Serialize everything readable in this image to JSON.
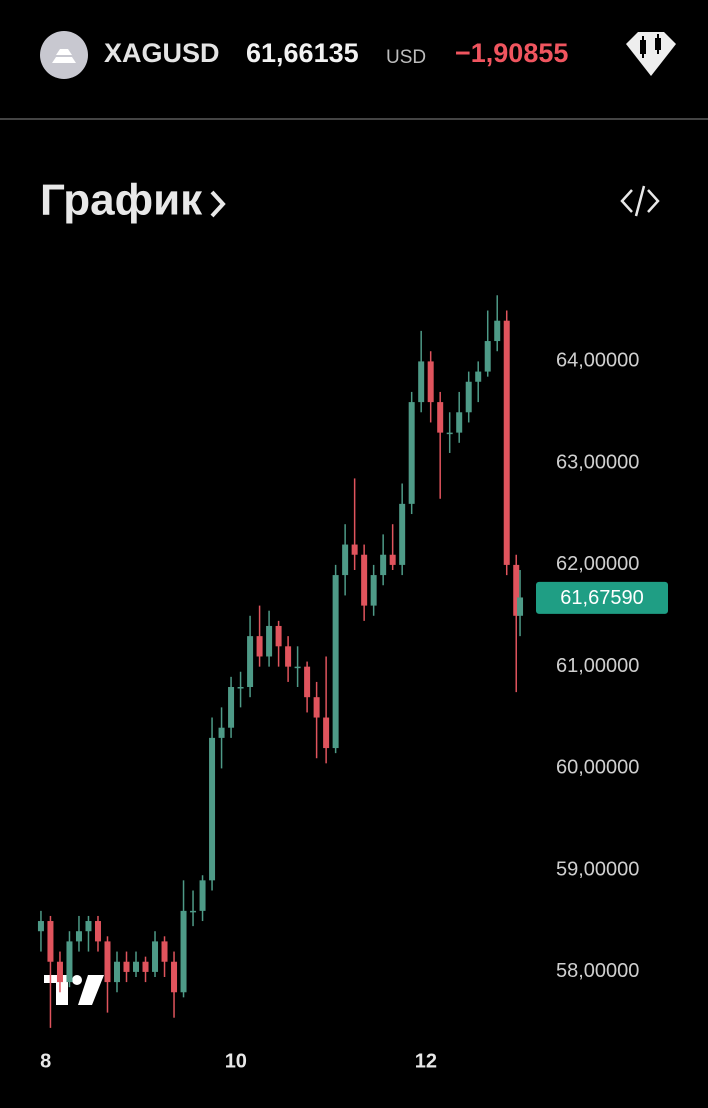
{
  "header": {
    "symbol": "XAGUSD",
    "price": "61,66135",
    "currency": "USD",
    "change": "−1,90855"
  },
  "section_title": "График",
  "chart_data": {
    "type": "candlestick",
    "x": [
      7.95,
      8.05,
      8.15,
      8.25,
      8.35,
      8.45,
      8.55,
      8.65,
      8.75,
      8.85,
      8.95,
      9.05,
      9.15,
      9.25,
      9.35,
      9.45,
      9.55,
      9.65,
      9.75,
      9.85,
      9.95,
      10.05,
      10.15,
      10.25,
      10.35,
      10.45,
      10.55,
      10.65,
      10.75,
      10.85,
      10.95,
      11.05,
      11.15,
      11.25,
      11.35,
      11.45,
      11.55,
      11.65,
      11.75,
      11.85,
      11.95,
      12.05,
      12.15,
      12.25,
      12.35,
      12.45,
      12.55,
      12.65,
      12.75,
      12.85,
      12.95,
      12.99
    ],
    "open": [
      58.4,
      58.5,
      58.1,
      57.9,
      58.3,
      58.4,
      58.5,
      58.3,
      57.9,
      58.1,
      58.0,
      58.1,
      58.0,
      58.3,
      58.1,
      57.8,
      58.6,
      58.6,
      58.9,
      60.3,
      60.4,
      60.8,
      60.8,
      61.3,
      61.1,
      61.4,
      61.2,
      61.0,
      61.0,
      60.7,
      60.5,
      60.2,
      61.9,
      62.2,
      62.1,
      61.6,
      61.9,
      62.1,
      62.0,
      62.6,
      63.6,
      64.0,
      63.6,
      63.3,
      63.3,
      63.5,
      63.8,
      63.9,
      64.2,
      64.4,
      62.0,
      61.5
    ],
    "high": [
      58.6,
      58.55,
      58.2,
      58.4,
      58.55,
      58.55,
      58.55,
      58.35,
      58.2,
      58.2,
      58.2,
      58.15,
      58.4,
      58.35,
      58.2,
      58.9,
      58.8,
      58.95,
      60.5,
      60.6,
      60.9,
      60.95,
      61.5,
      61.6,
      61.55,
      61.45,
      61.3,
      61.2,
      61.05,
      60.85,
      61.1,
      62.0,
      62.4,
      62.85,
      62.2,
      62.0,
      62.3,
      62.4,
      62.8,
      63.7,
      64.3,
      64.1,
      63.7,
      63.5,
      63.7,
      63.9,
      64.0,
      64.5,
      64.65,
      64.5,
      62.1,
      61.95
    ],
    "low": [
      58.2,
      57.45,
      57.8,
      57.85,
      58.2,
      58.2,
      58.2,
      57.6,
      57.8,
      57.9,
      57.95,
      57.9,
      57.95,
      57.95,
      57.55,
      57.75,
      58.45,
      58.5,
      58.8,
      60.0,
      60.3,
      60.6,
      60.7,
      61.0,
      61.0,
      61.0,
      60.85,
      60.8,
      60.55,
      60.1,
      60.05,
      60.15,
      61.7,
      61.95,
      61.45,
      61.5,
      61.8,
      61.95,
      61.9,
      62.5,
      63.5,
      63.4,
      62.65,
      63.1,
      63.2,
      63.4,
      63.6,
      63.85,
      64.1,
      61.9,
      60.75,
      61.3
    ],
    "close": [
      58.5,
      58.1,
      57.9,
      58.3,
      58.4,
      58.5,
      58.3,
      57.9,
      58.1,
      58.0,
      58.1,
      58.0,
      58.3,
      58.1,
      57.8,
      58.6,
      58.6,
      58.9,
      60.3,
      60.4,
      60.8,
      60.8,
      61.3,
      61.1,
      61.4,
      61.2,
      61.0,
      61.0,
      60.7,
      60.5,
      60.2,
      61.9,
      62.2,
      62.1,
      61.6,
      61.9,
      62.1,
      62.0,
      62.6,
      63.6,
      64.0,
      63.6,
      63.3,
      63.3,
      63.5,
      63.8,
      63.9,
      64.2,
      64.4,
      62.0,
      61.5,
      61.68
    ],
    "up_color": "#4e9a87",
    "down_color": "#e0545d",
    "xlim": [
      7.94,
      13.2
    ],
    "xticks": [
      8,
      10,
      12
    ],
    "ylim": [
      57.38,
      64.8
    ],
    "yticks": [
      {
        "value": 58,
        "label": "58,00000"
      },
      {
        "value": 59,
        "label": "59,00000"
      },
      {
        "value": 60,
        "label": "60,00000"
      },
      {
        "value": 61,
        "label": "61,00000"
      },
      {
        "value": 62,
        "label": "62,00000"
      },
      {
        "value": 63,
        "label": "63,00000"
      },
      {
        "value": 64,
        "label": "64,00000"
      }
    ],
    "last_price": {
      "value": 61.6759,
      "label": "61,67590"
    },
    "last_price_color": "#1f9e84",
    "grid": false
  }
}
